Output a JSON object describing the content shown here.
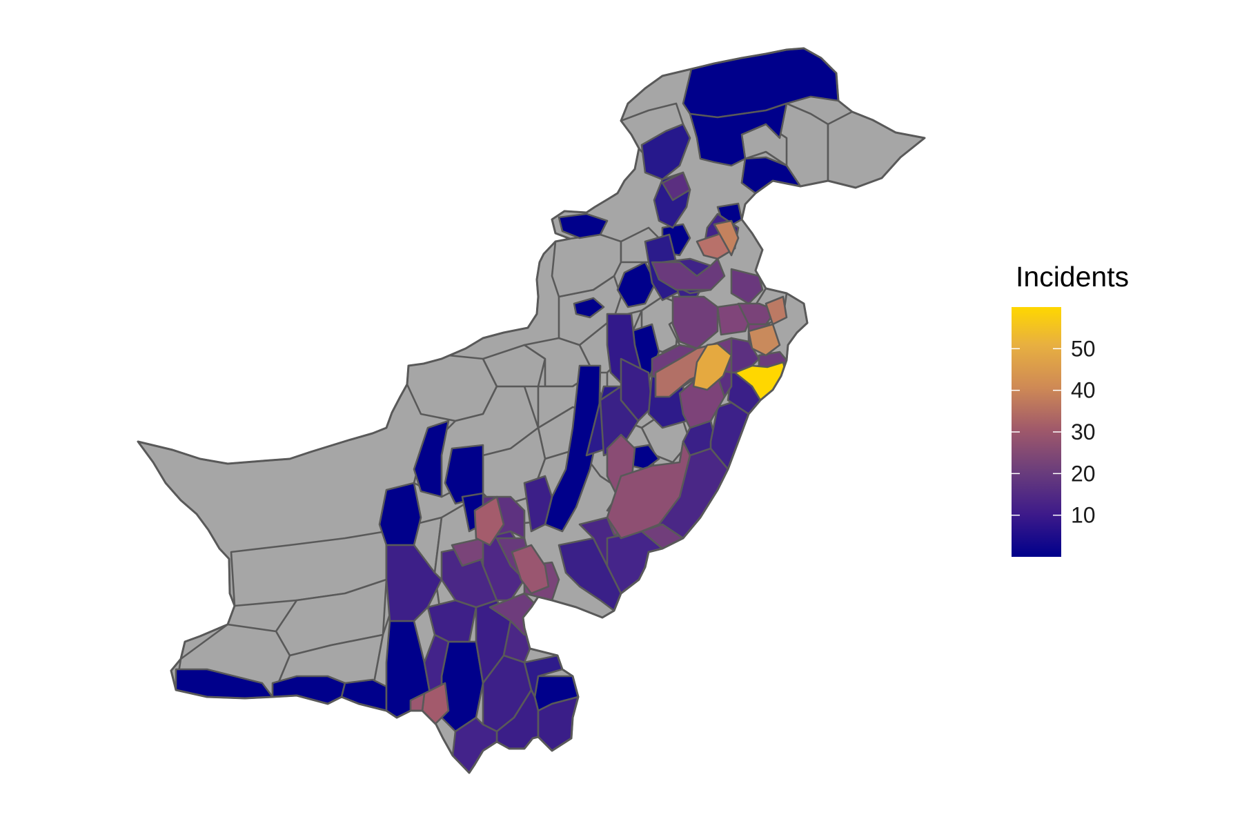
{
  "legend": {
    "title": "Incidents",
    "ticks": [
      "50",
      "40",
      "30",
      "20",
      "10"
    ],
    "tick_values": [
      50,
      40,
      30,
      20,
      10
    ],
    "scale_min": 0,
    "scale_max": 60,
    "colors": [
      "#00008b",
      "#3d1a8a",
      "#6a3d7c",
      "#a0596a",
      "#cf8a55",
      "#e8b040",
      "#ffd700"
    ]
  },
  "map": {
    "no_data_color": "#a6a6a6",
    "border_color": "#595959"
  }
}
